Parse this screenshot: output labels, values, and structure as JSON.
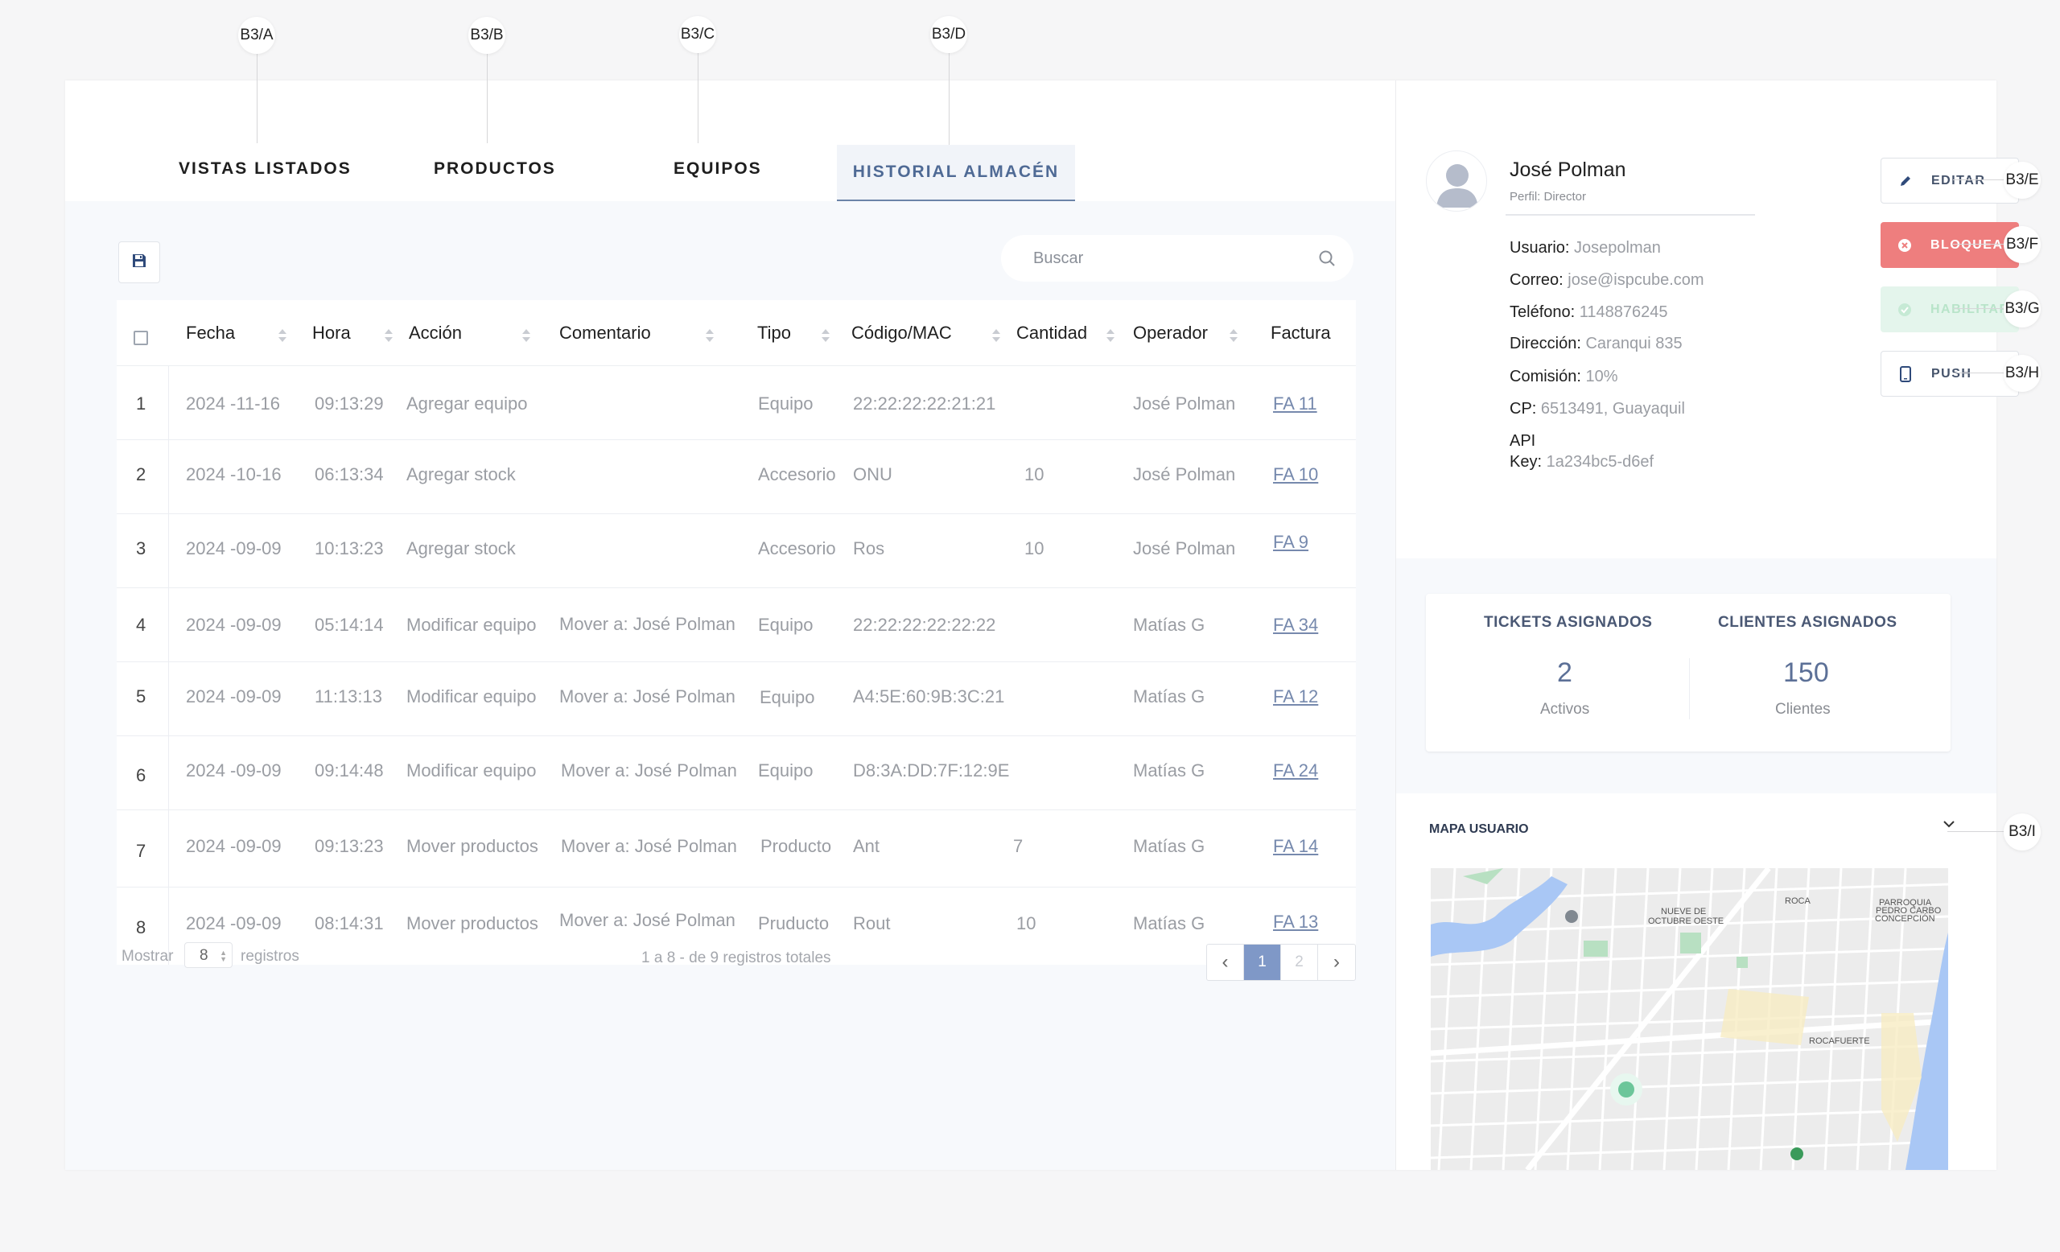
{
  "annotations": {
    "a": "B3/A",
    "b": "B3/B",
    "c": "B3/C",
    "d": "B3/D",
    "e": "B3/E",
    "f": "B3/F",
    "g": "B3/G",
    "h": "B3/H",
    "i": "B3/I"
  },
  "tabs": {
    "vistas": "VISTAS LISTADOS",
    "productos": "PRODUCTOS",
    "equipos": "EQUIPOS",
    "historial": "HISTORIAL ALMACÉN",
    "active": "historial"
  },
  "toolbar": {
    "save_icon": "save-icon"
  },
  "search": {
    "placeholder": "Buscar",
    "icon": "search-icon"
  },
  "table": {
    "headers": {
      "fecha": "Fecha",
      "hora": "Hora",
      "accion": "Acción",
      "comentario": "Comentario",
      "tipo": "Tipo",
      "codigo": "Código/MAC",
      "cantidad": "Cantidad",
      "operador": "Operador",
      "factura": "Factura"
    },
    "rows": [
      {
        "n": "1",
        "fecha": "2024 -11-16",
        "hora": "09:13:29",
        "accion": "Agregar equipo",
        "comentario": "",
        "tipo": "Equipo",
        "codigo": "22:22:22:22:21:21",
        "cantidad": "",
        "operador": "José Polman",
        "factura": "FA 11"
      },
      {
        "n": "2",
        "fecha": "2024 -10-16",
        "hora": "06:13:34",
        "accion": "Agregar stock",
        "comentario": "",
        "tipo": "Accesorio",
        "codigo": "ONU",
        "cantidad": "10",
        "operador": "José Polman",
        "factura": "FA 10"
      },
      {
        "n": "3",
        "fecha": "2024 -09-09",
        "hora": "10:13:23",
        "accion": "Agregar stock",
        "comentario": "",
        "tipo": "Accesorio",
        "codigo": "Ros",
        "cantidad": "10",
        "operador": "José Polman",
        "factura": "FA 9"
      },
      {
        "n": "4",
        "fecha": "2024 -09-09",
        "hora": "05:14:14",
        "accion": "Modificar equipo",
        "comentario": "Mover a: José Polman",
        "tipo": "Equipo",
        "codigo": "22:22:22:22:22:22",
        "cantidad": "",
        "operador": "Matías G",
        "factura": "FA 34"
      },
      {
        "n": "5",
        "fecha": "2024 -09-09",
        "hora": "11:13:13",
        "accion": "Modificar equipo",
        "comentario": "Mover a: José Polman",
        "tipo": "Equipo",
        "codigo": "A4:5E:60:9B:3C:21",
        "cantidad": "",
        "operador": "Matías G",
        "factura": "FA 12"
      },
      {
        "n": "6",
        "fecha": "2024 -09-09",
        "hora": "09:14:48",
        "accion": "Modificar equipo",
        "comentario": "Mover a: José Polman",
        "tipo": "Equipo",
        "codigo": "D8:3A:DD:7F:12:9E",
        "cantidad": "",
        "operador": "Matías G",
        "factura": "FA 24"
      },
      {
        "n": "7",
        "fecha": "2024 -09-09",
        "hora": "09:13:23",
        "accion": "Mover productos",
        "comentario": "Mover a: José Polman",
        "tipo": "Producto",
        "codigo": "Ant",
        "cantidad": "7",
        "operador": "Matías G",
        "factura": "FA 14"
      },
      {
        "n": "8",
        "fecha": "2024 -09-09",
        "hora": "08:14:31",
        "accion": "Mover productos",
        "comentario": "Mover a: José Polman",
        "tipo": "Pruducto",
        "codigo": "Rout",
        "cantidad": "10",
        "operador": "Matías G",
        "factura": "FA 13"
      }
    ]
  },
  "footer": {
    "mostrar": "Mostrar",
    "page_size": "8",
    "registros": "registros",
    "summary": "1 a 8  - de 9 registros totales",
    "pages": [
      "1",
      "2"
    ],
    "current_page": "1"
  },
  "profile": {
    "name": "José Polman",
    "role": "Perfil: Director",
    "fields": {
      "usuario_label": "Usuario:",
      "usuario": "Josepolman",
      "correo_label": "Correo:",
      "correo": "jose@ispcube.com",
      "telefono_label": "Teléfono:",
      "telefono": "1148876245",
      "direccion_label": "Dirección:",
      "direccion": "Caranqui 835",
      "comision_label": "Comisión:",
      "comision": "10%",
      "cp_label": "CP:",
      "cp": "6513491, Guayaquil",
      "api_label_1": "API",
      "api_label_2": "Key:",
      "api": "1a234bc5-d6ef"
    },
    "buttons": {
      "editar": "EDITAR",
      "bloquear": "BLOQUEAR",
      "habilitar": "HABILITAR",
      "push": "PUSH"
    }
  },
  "stats": {
    "tickets_label": "TICKETS ASIGNADOS",
    "tickets_value": "2",
    "tickets_sub": "Activos",
    "clientes_label": "CLIENTES ASIGNADOS",
    "clientes_value": "150",
    "clientes_sub": "Clientes"
  },
  "map": {
    "title": "MAPA USUARIO",
    "labels": {
      "nueve1": "NUEVE DE",
      "nueve2": "OCTUBRE OESTE",
      "roca": "ROCA",
      "parroquia1": "PARROQUIA",
      "parroquia2": "PEDRO CARBO",
      "parroquia3": "CONCEPCIÓN",
      "rocafuerte": "ROCAFUERTE"
    }
  },
  "colors": {
    "accent": "#4f6a95",
    "danger": "#ee7e7e",
    "success_light": "#e4f5ec",
    "pager_active": "#7f98c7",
    "link": "#7689ad"
  }
}
